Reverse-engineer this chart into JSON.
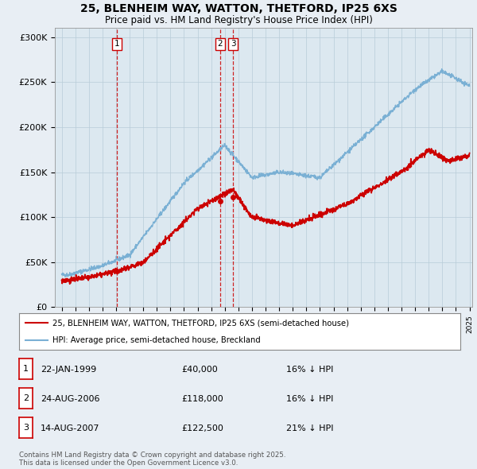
{
  "title_line1": "25, BLENHEIM WAY, WATTON, THETFORD, IP25 6XS",
  "title_line2": "Price paid vs. HM Land Registry's House Price Index (HPI)",
  "ylim": [
    0,
    310000
  ],
  "yticks": [
    0,
    50000,
    100000,
    150000,
    200000,
    250000,
    300000
  ],
  "ytick_labels": [
    "£0",
    "£50K",
    "£100K",
    "£150K",
    "£200K",
    "£250K",
    "£300K"
  ],
  "x_start_year": 1995,
  "x_end_year": 2025,
  "sale_color": "#cc0000",
  "hpi_color": "#7ab0d4",
  "background_color": "#e8eef4",
  "plot_bg_color": "#dce8f0",
  "grid_color": "#b8ccd8",
  "sales": [
    {
      "date_num": 1999.06,
      "price": 40000,
      "label": "1"
    },
    {
      "date_num": 2006.65,
      "price": 118000,
      "label": "2"
    },
    {
      "date_num": 2007.62,
      "price": 122500,
      "label": "3"
    }
  ],
  "legend_sale_label": "25, BLENHEIM WAY, WATTON, THETFORD, IP25 6XS (semi-detached house)",
  "legend_hpi_label": "HPI: Average price, semi-detached house, Breckland",
  "table_rows": [
    {
      "num": "1",
      "date": "22-JAN-1999",
      "price": "£40,000",
      "hpi": "16% ↓ HPI"
    },
    {
      "num": "2",
      "date": "24-AUG-2006",
      "price": "£118,000",
      "hpi": "16% ↓ HPI"
    },
    {
      "num": "3",
      "date": "14-AUG-2007",
      "price": "£122,500",
      "hpi": "21% ↓ HPI"
    }
  ],
  "footer_text": "Contains HM Land Registry data © Crown copyright and database right 2025.\nThis data is licensed under the Open Government Licence v3.0."
}
